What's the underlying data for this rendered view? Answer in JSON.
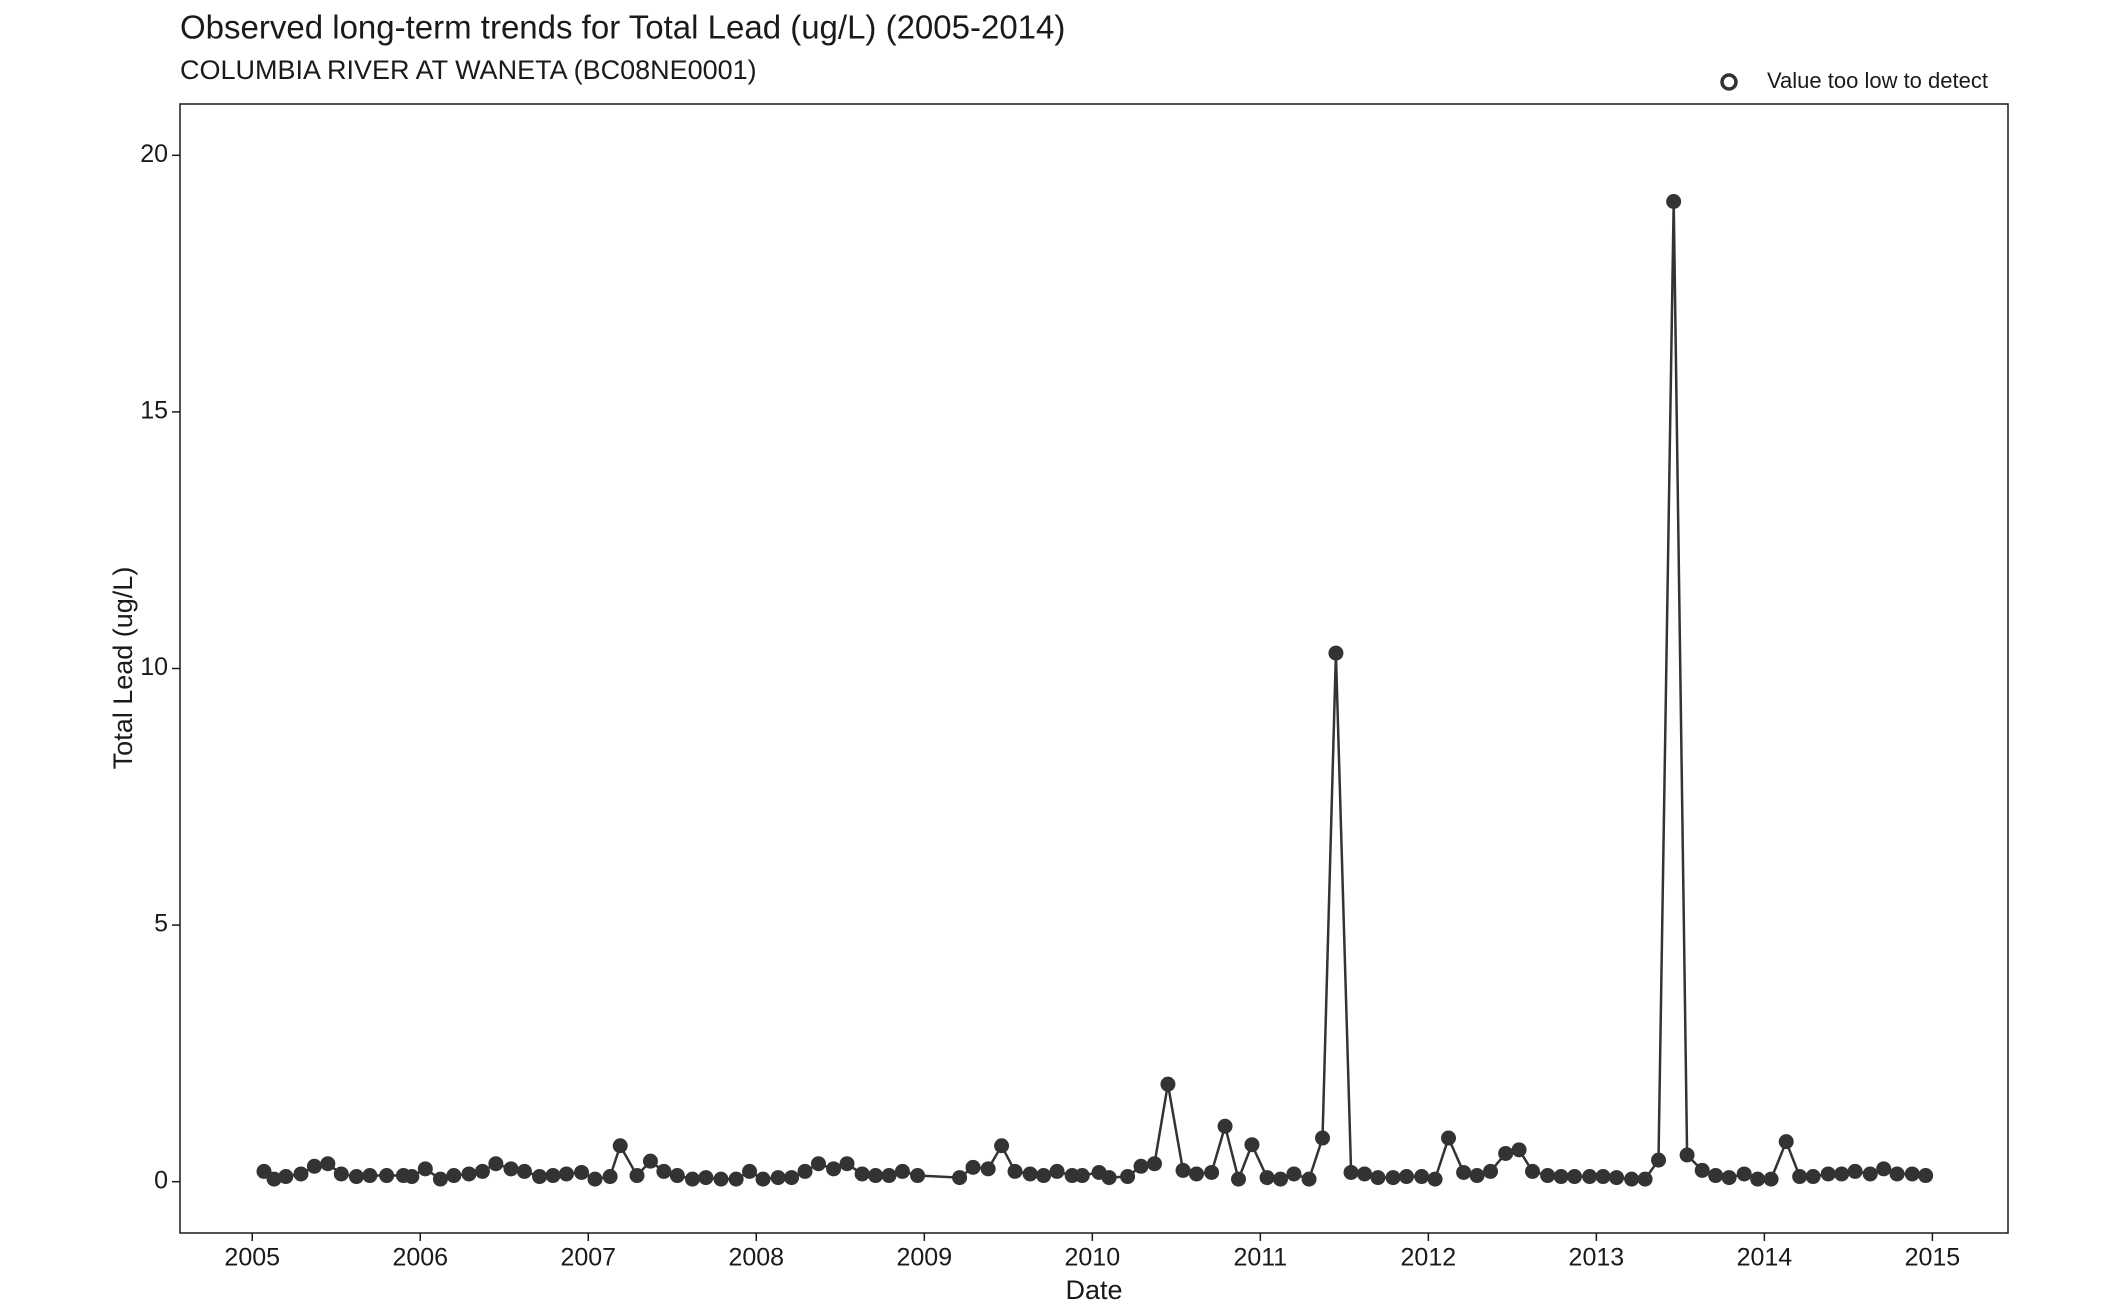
{
  "chart_data": {
    "type": "line",
    "title": "Observed long-term trends for Total Lead (ug/L) (2005-2014)",
    "subtitle": "COLUMBIA RIVER AT WANETA (BC08NE0001)",
    "x_label": "Date",
    "y_label": "Total Lead (ug/L)",
    "legend": {
      "label": "Value too low to detect",
      "position": "top-right"
    },
    "xlim": [
      2004.57,
      2015.45
    ],
    "xticks": [
      2005,
      2006,
      2007,
      2008,
      2009,
      2010,
      2011,
      2012,
      2013,
      2014,
      2015
    ],
    "ylim": [
      -1,
      21
    ],
    "yticks": [
      0,
      5,
      10,
      15,
      20
    ],
    "grid": false,
    "series": [
      {
        "name": "Total Lead",
        "color": "#333333",
        "x": [
          2005.07,
          2005.13,
          2005.2,
          2005.29,
          2005.37,
          2005.45,
          2005.53,
          2005.62,
          2005.7,
          2005.8,
          2005.9,
          2005.95,
          2006.03,
          2006.12,
          2006.2,
          2006.29,
          2006.37,
          2006.45,
          2006.54,
          2006.62,
          2006.71,
          2006.79,
          2006.87,
          2006.96,
          2007.04,
          2007.13,
          2007.19,
          2007.29,
          2007.37,
          2007.45,
          2007.53,
          2007.62,
          2007.7,
          2007.79,
          2007.88,
          2007.96,
          2008.04,
          2008.13,
          2008.21,
          2008.29,
          2008.37,
          2008.46,
          2008.54,
          2008.63,
          2008.71,
          2008.79,
          2008.87,
          2008.96,
          2009.21,
          2009.29,
          2009.38,
          2009.46,
          2009.54,
          2009.63,
          2009.71,
          2009.79,
          2009.88,
          2009.94,
          2010.04,
          2010.1,
          2010.21,
          2010.29,
          2010.37,
          2010.45,
          2010.54,
          2010.62,
          2010.71,
          2010.79,
          2010.87,
          2010.95,
          2011.04,
          2011.12,
          2011.2,
          2011.29,
          2011.37,
          2011.45,
          2011.54,
          2011.62,
          2011.7,
          2011.79,
          2011.87,
          2011.96,
          2012.04,
          2012.12,
          2012.21,
          2012.29,
          2012.37,
          2012.46,
          2012.54,
          2012.62,
          2012.71,
          2012.79,
          2012.87,
          2012.96,
          2013.04,
          2013.12,
          2013.21,
          2013.29,
          2013.37,
          2013.46,
          2013.54,
          2013.63,
          2013.71,
          2013.79,
          2013.88,
          2013.96,
          2014.04,
          2014.13,
          2014.21,
          2014.29,
          2014.38,
          2014.46,
          2014.54,
          2014.63,
          2014.71,
          2014.79,
          2014.88,
          2014.96
        ],
        "values": [
          0.2,
          0.05,
          0.1,
          0.15,
          0.3,
          0.35,
          0.15,
          0.1,
          0.12,
          0.12,
          0.12,
          0.1,
          0.25,
          0.05,
          0.12,
          0.15,
          0.2,
          0.35,
          0.25,
          0.2,
          0.1,
          0.12,
          0.15,
          0.18,
          0.05,
          0.1,
          0.7,
          0.12,
          0.4,
          0.2,
          0.12,
          0.05,
          0.08,
          0.05,
          0.05,
          0.2,
          0.05,
          0.08,
          0.08,
          0.2,
          0.35,
          0.25,
          0.35,
          0.15,
          0.12,
          0.12,
          0.2,
          0.12,
          0.08,
          0.28,
          0.25,
          0.7,
          0.2,
          0.15,
          0.12,
          0.2,
          0.12,
          0.12,
          0.18,
          0.08,
          0.1,
          0.3,
          0.35,
          1.9,
          0.22,
          0.15,
          0.18,
          1.08,
          0.05,
          0.72,
          0.08,
          0.05,
          0.15,
          0.05,
          0.85,
          10.3,
          0.18,
          0.15,
          0.08,
          0.08,
          0.1,
          0.1,
          0.05,
          0.85,
          0.18,
          0.12,
          0.2,
          0.55,
          0.62,
          0.2,
          0.12,
          0.1,
          0.1,
          0.1,
          0.1,
          0.08,
          0.05,
          0.05,
          0.42,
          19.1,
          0.52,
          0.22,
          0.12,
          0.08,
          0.15,
          0.05,
          0.05,
          0.78,
          0.1,
          0.1,
          0.15,
          0.15,
          0.2,
          0.15,
          0.25,
          0.15,
          0.15,
          0.12
        ]
      }
    ]
  }
}
